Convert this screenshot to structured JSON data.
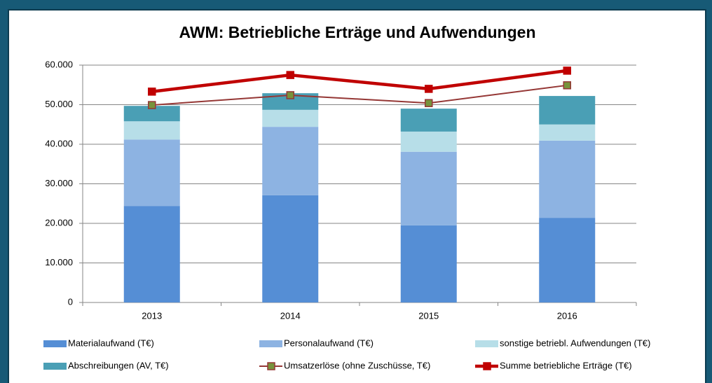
{
  "chart_data": {
    "type": "bar",
    "title": "AWM: Betriebliche Erträge und Aufwendungen",
    "categories": [
      "2013",
      "2014",
      "2015",
      "2016"
    ],
    "stacked": true,
    "series": [
      {
        "name": "Materialaufwand (T€)",
        "type": "bar",
        "color": "#558ed5",
        "values": [
          24400,
          27100,
          19500,
          21400
        ]
      },
      {
        "name": "Personalaufwand (T€)",
        "type": "bar",
        "color": "#8db3e2",
        "values": [
          16800,
          17300,
          18600,
          19500
        ]
      },
      {
        "name": "sonstige betriebl. Aufwendungen (T€)",
        "type": "bar",
        "color": "#b7dee8",
        "values": [
          4600,
          4300,
          5100,
          4100
        ]
      },
      {
        "name": "Abschreibungen (AV, T€)",
        "type": "bar",
        "color": "#4a9fb5",
        "values": [
          3900,
          4200,
          5800,
          7200
        ]
      },
      {
        "name": "Umsatzerlöse (ohne Zuschüsse, T€)",
        "type": "line",
        "color": "#953735",
        "marker_color": "#77933c",
        "values": [
          49900,
          52400,
          50400,
          54900
        ]
      },
      {
        "name": "Summe betriebliche Erträge (T€)",
        "type": "line",
        "color": "#c00000",
        "marker_color": "#c00000",
        "values": [
          53300,
          57500,
          54000,
          58600
        ]
      }
    ],
    "ylim": [
      0,
      60000
    ],
    "yticks": [
      0,
      {
        "value": 10000,
        "label": "10.000"
      },
      {
        "value": 20000,
        "label": "20.000"
      },
      {
        "value": 30000,
        "label": "30.000"
      },
      {
        "value": 40000,
        "label": "40.000"
      },
      {
        "value": 50000,
        "label": "50.000"
      },
      {
        "value": 60000,
        "label": "60.000"
      }
    ],
    "grid": true,
    "legend": "bottom"
  }
}
